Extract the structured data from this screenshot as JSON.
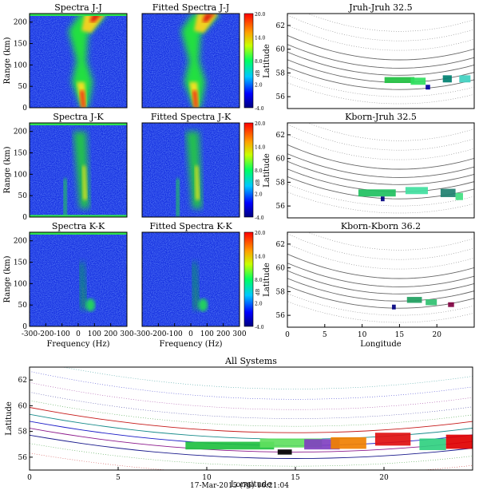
{
  "footer": "17-Mar-2015 (76) 16:21:04",
  "colorbar": {
    "ticks": [
      "20.0",
      "14.0",
      "8.0",
      "2.0",
      "-4.0"
    ],
    "unit": "dB"
  },
  "chart_data": [
    {
      "type": "heatmap",
      "title": "Spectra J-J",
      "ylabel": "Range (km)",
      "xlim": [
        -300,
        300
      ],
      "ylim": [
        0,
        220
      ],
      "yticks": [
        "0",
        "50",
        "100",
        "150",
        "200"
      ]
    },
    {
      "type": "heatmap",
      "title": "Fitted Spectra J-J",
      "xlim": [
        -300,
        300
      ],
      "ylim": [
        0,
        220
      ]
    },
    {
      "type": "heatmap",
      "title": "Spectra J-K",
      "ylabel": "Range (km)",
      "xlim": [
        -300,
        300
      ],
      "ylim": [
        0,
        220
      ],
      "yticks": [
        "0",
        "50",
        "100",
        "150",
        "200"
      ]
    },
    {
      "type": "heatmap",
      "title": "Fitted Spectra J-K",
      "xlim": [
        -300,
        300
      ],
      "ylim": [
        0,
        220
      ]
    },
    {
      "type": "heatmap",
      "title": "Spectra K-K",
      "ylabel": "Range (km)",
      "xlabel": "Frequency (Hz)",
      "xlim": [
        -300,
        300
      ],
      "ylim": [
        0,
        220
      ],
      "yticks": [
        "0",
        "50",
        "100",
        "150",
        "200"
      ],
      "xticks": [
        "-300",
        "-200",
        "-100",
        "0",
        "100",
        "200",
        "300"
      ]
    },
    {
      "type": "heatmap",
      "title": "Fitted Spectra K-K",
      "xlabel": "Frequency (Hz)",
      "xlim": [
        -300,
        300
      ],
      "ylim": [
        0,
        220
      ],
      "xticks": [
        "-300",
        "-200",
        "-100",
        "0",
        "100",
        "200",
        "300"
      ]
    },
    {
      "type": "scatter",
      "title": "Jruh-Jruh 32.5",
      "ylabel": "Latitude",
      "xlim": [
        0,
        25
      ],
      "ylim": [
        55,
        63
      ],
      "yticks": [
        "56",
        "58",
        "60",
        "62"
      ]
    },
    {
      "type": "scatter",
      "title": "Kborn-Jruh 32.5",
      "ylabel": "Latitude",
      "xlim": [
        0,
        25
      ],
      "ylim": [
        55,
        63
      ],
      "yticks": [
        "56",
        "58",
        "60",
        "62"
      ]
    },
    {
      "type": "scatter",
      "title": "Kborn-Kborn 36.2",
      "ylabel": "Latitude",
      "xlabel": "Longitude",
      "xlim": [
        0,
        25
      ],
      "ylim": [
        55,
        63
      ],
      "yticks": [
        "56",
        "58",
        "60",
        "62"
      ],
      "xticks": [
        "0",
        "5",
        "10",
        "15",
        "20"
      ]
    },
    {
      "type": "scatter",
      "title": "All Systems",
      "ylabel": "Latitude",
      "xlabel": "Longitude",
      "xlim": [
        0,
        25
      ],
      "ylim": [
        55,
        63
      ],
      "yticks": [
        "56",
        "58",
        "60",
        "62"
      ],
      "xticks": [
        "0",
        "5",
        "10",
        "15",
        "20"
      ]
    }
  ]
}
